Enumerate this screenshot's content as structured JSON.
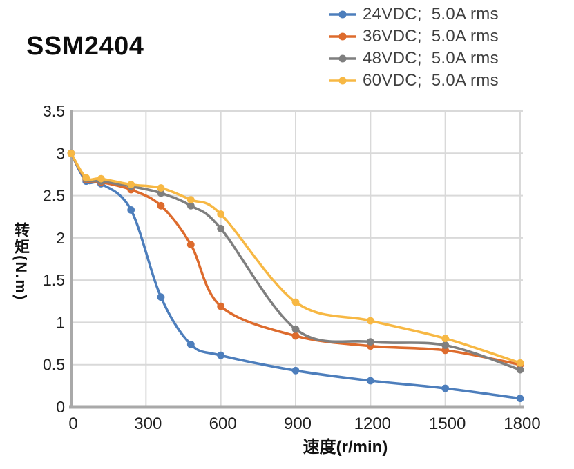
{
  "page": {
    "title": "SSM2404"
  },
  "chart_data": {
    "type": "line",
    "title": "SSM2404",
    "xlabel": "速度(r/min)",
    "ylabel": "转矩(N.m)",
    "x": [
      0,
      60,
      120,
      240,
      360,
      480,
      600,
      900,
      1200,
      1500,
      1800
    ],
    "xlim": [
      0,
      1800
    ],
    "ylim": [
      0,
      3.5
    ],
    "x_ticks": [
      0,
      300,
      600,
      900,
      1200,
      1500,
      1800
    ],
    "y_ticks": [
      "0",
      "0.5",
      "1",
      "1.5",
      "2",
      "2.5",
      "3",
      "3.5"
    ],
    "grid": true,
    "line_style": "smooth",
    "marker": "circle",
    "legend_position": "top-right",
    "series": [
      {
        "name": "24VDC;  5.0A rms",
        "color": "#4D7EBC",
        "values": [
          3.0,
          2.67,
          2.64,
          2.33,
          1.3,
          0.74,
          0.61,
          0.43,
          0.31,
          0.22,
          0.1
        ]
      },
      {
        "name": "36VDC;  5.0A rms",
        "color": "#DD6B2D",
        "values": [
          3.0,
          2.69,
          2.66,
          2.57,
          2.38,
          1.92,
          1.19,
          0.84,
          0.72,
          0.67,
          0.5
        ]
      },
      {
        "name": "48VDC;  5.0A rms",
        "color": "#7F7F7F",
        "values": [
          3.0,
          2.7,
          2.67,
          2.61,
          2.53,
          2.38,
          2.11,
          0.92,
          0.77,
          0.73,
          0.44
        ]
      },
      {
        "name": "60VDC;  5.0A rms",
        "color": "#F7B844",
        "values": [
          3.0,
          2.71,
          2.7,
          2.63,
          2.59,
          2.45,
          2.28,
          1.24,
          1.02,
          0.81,
          0.52
        ]
      }
    ],
    "colors": {
      "grid": "#D9D9D9",
      "axis": "#A9A9A9",
      "tick_text": "#1f1f1f",
      "legend_text": "#3f3f3f",
      "title_text": "#0d0d0d"
    }
  }
}
